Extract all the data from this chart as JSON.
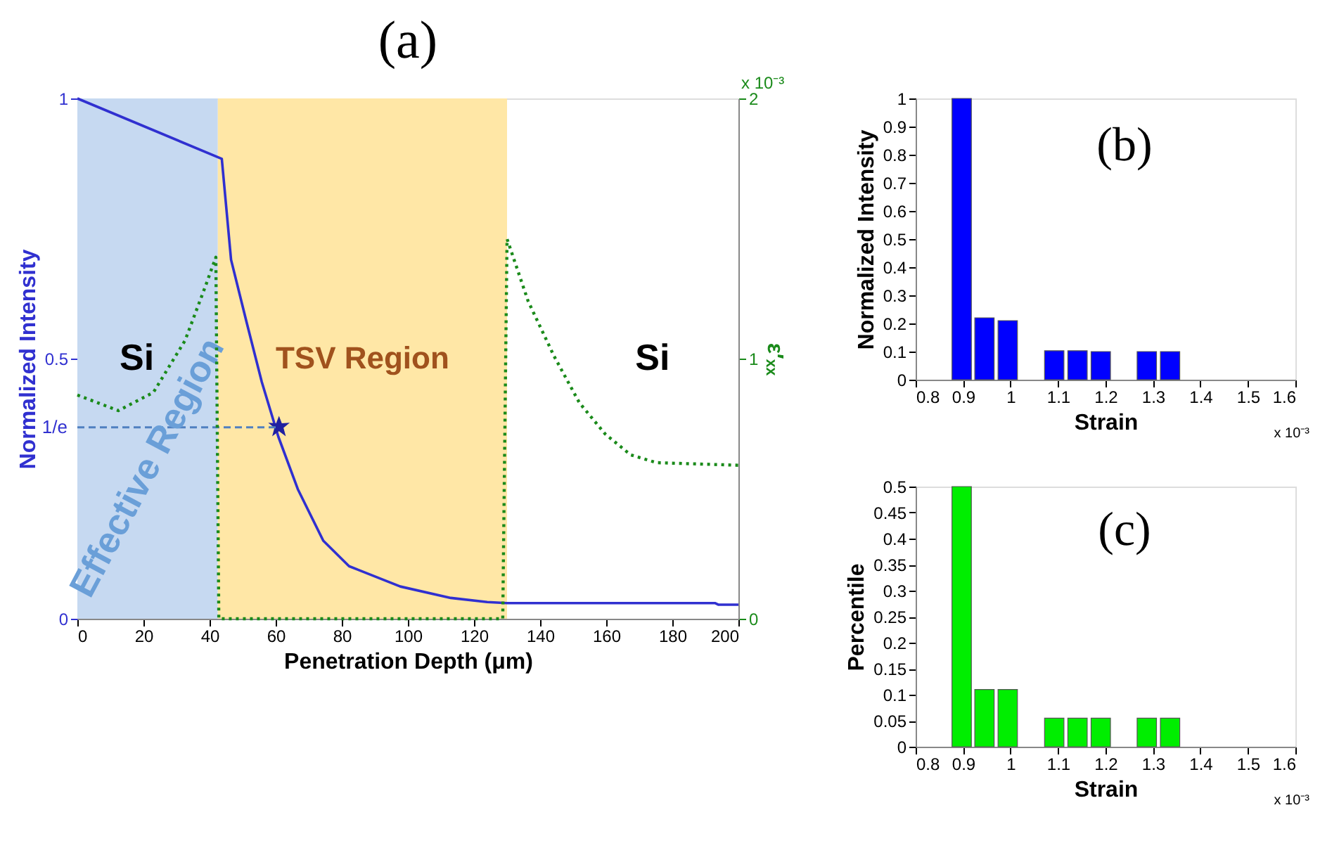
{
  "chart_data": [
    {
      "type": "line",
      "title": "(a)",
      "xlabel": "Penetration Depth (μm)",
      "ylabel": "Normalized Intensity",
      "y2label": "ε′ₓₓ",
      "xlim": [
        0,
        200
      ],
      "xticks": [
        0,
        20,
        40,
        60,
        80,
        100,
        120,
        140,
        160,
        180,
        200
      ],
      "ylim": [
        0,
        1
      ],
      "yticks": [
        0,
        0.5,
        1
      ],
      "ref_lines": [
        {
          "axis": "y",
          "value": 0.368,
          "label": "1/e",
          "color": "#5080c0",
          "line_style": "dashed"
        }
      ],
      "y2lim": [
        0,
        2
      ],
      "y2ticks": [
        0,
        1,
        2
      ],
      "bands": [
        {
          "axis": "x",
          "from": 0,
          "to": 42.5,
          "label": "Effective Region",
          "color": "#c6d9f1"
        },
        {
          "axis": "x",
          "from": 42.5,
          "to": 130,
          "label": "TSV Region",
          "color": "#ffe7a6"
        }
      ],
      "annotations": [
        "Si",
        "Si",
        "x 10⁻³"
      ],
      "series": [
        {
          "type": "line",
          "color": "#3030d0",
          "line_style": "solid",
          "x": [
            0,
            43.7,
            46.5,
            51.2,
            55.8,
            60.8,
            66.7,
            74.4,
            82.2,
            97.7,
            113,
            124,
            130,
            193,
            194,
            200
          ],
          "values": [
            1,
            0.884,
            0.69,
            0.57,
            0.455,
            0.35,
            0.249,
            0.15,
            0.101,
            0.062,
            0.04,
            0.032,
            0.03,
            0.03,
            0.027,
            0.027
          ]
        },
        {
          "type": "scatter",
          "color": "#2020a0",
          "marker": "star",
          "x": [
            61
          ],
          "values": [
            0.368
          ]
        },
        {
          "type": "line",
          "axis": "y2",
          "color": "#1a8a1a",
          "line_style": "dotted",
          "x": [
            0,
            12.4,
            23,
            32.6,
            38.8,
            41.9,
            42.8,
            128.7,
            130,
            136.4,
            144.2,
            151.9,
            159.7,
            167.4,
            175.2,
            200
          ],
          "values": [
            0.86,
            0.8,
            0.87,
            1.07,
            1.28,
            1.39,
            0,
            0,
            1.46,
            1.22,
            1.01,
            0.83,
            0.71,
            0.63,
            0.6,
            0.59
          ]
        }
      ]
    },
    {
      "type": "bar",
      "title": "(b)",
      "xlabel": "Strain",
      "ylabel": "Normalized Intensity",
      "xlim": [
        0.8,
        1.6
      ],
      "xticks": [
        0.8,
        0.9,
        1,
        1.1,
        1.2,
        1.3,
        1.4,
        1.5,
        1.6
      ],
      "ylim": [
        0,
        1
      ],
      "yticks": [
        0,
        0.1,
        0.2,
        0.3,
        0.4,
        0.5,
        0.6,
        0.7,
        0.8,
        0.9,
        1
      ],
      "annotations": [
        "x 10⁻³"
      ],
      "x": [
        0.897,
        0.945,
        0.994,
        1.092,
        1.141,
        1.19,
        1.287,
        1.336
      ],
      "series": [
        {
          "color": "#0000ff",
          "values": [
            1,
            0.22,
            0.21,
            0.103,
            0.103,
            0.1,
            0.1,
            0.1
          ]
        }
      ]
    },
    {
      "type": "bar",
      "title": "(c)",
      "xlabel": "Strain",
      "ylabel": "Percentile",
      "xlim": [
        0.8,
        1.6
      ],
      "xticks": [
        0.8,
        0.9,
        1,
        1.1,
        1.2,
        1.3,
        1.4,
        1.5,
        1.6
      ],
      "ylim": [
        0,
        0.5
      ],
      "yticks": [
        0,
        0.05,
        0.1,
        0.15,
        0.2,
        0.25,
        0.3,
        0.35,
        0.4,
        0.45,
        0.5
      ],
      "annotations": [
        "x 10⁻³"
      ],
      "x": [
        0.897,
        0.945,
        0.994,
        1.092,
        1.141,
        1.19,
        1.287,
        1.336
      ],
      "series": [
        {
          "color": "#00ee00",
          "values": [
            0.5,
            0.11,
            0.11,
            0.055,
            0.055,
            0.055,
            0.055,
            0.055
          ]
        }
      ]
    }
  ]
}
